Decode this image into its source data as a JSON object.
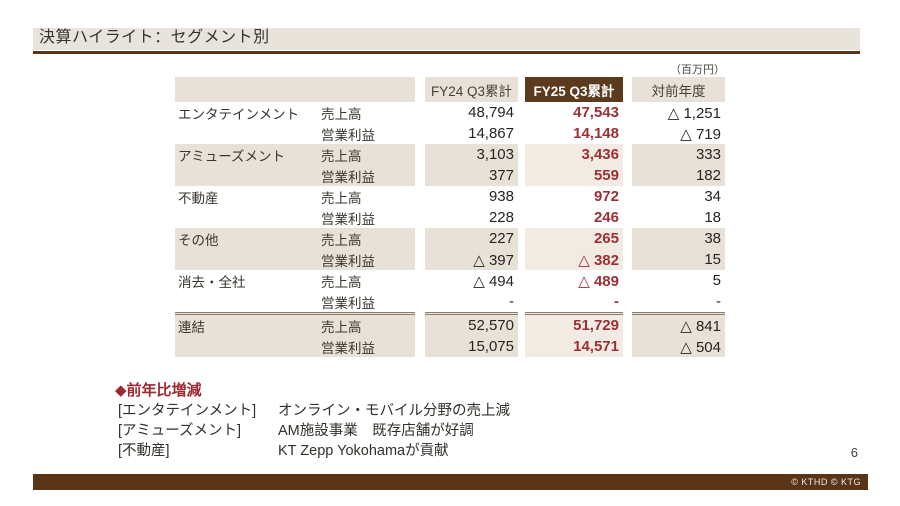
{
  "slide": {
    "title": "決算ハイライト：セグメント別",
    "unit_note": "（百万円）",
    "page_number": "6",
    "footer_copyright": "© KTHD © KTG"
  },
  "table": {
    "columns": {
      "fy24": "FY24 Q3累計",
      "fy25": "FY25 Q3累計",
      "yoy": "対前年度"
    },
    "rows": [
      {
        "segment": "エンタテインメント",
        "metric": "売上高",
        "fy24": "48,794",
        "fy25": "47,543",
        "yoy": "△ 1,251"
      },
      {
        "segment": "",
        "metric": "営業利益",
        "fy24": "14,867",
        "fy25": "14,148",
        "yoy": "△ 719"
      },
      {
        "segment": "アミューズメント",
        "metric": "売上高",
        "fy24": "3,103",
        "fy25": "3,436",
        "yoy": "333"
      },
      {
        "segment": "",
        "metric": "営業利益",
        "fy24": "377",
        "fy25": "559",
        "yoy": "182"
      },
      {
        "segment": "不動産",
        "metric": "売上高",
        "fy24": "938",
        "fy25": "972",
        "yoy": "34"
      },
      {
        "segment": "",
        "metric": "営業利益",
        "fy24": "228",
        "fy25": "246",
        "yoy": "18"
      },
      {
        "segment": "その他",
        "metric": "売上高",
        "fy24": "227",
        "fy25": "265",
        "yoy": "38"
      },
      {
        "segment": "",
        "metric": "営業利益",
        "fy24": "△ 397",
        "fy25": "△ 382",
        "yoy": "15"
      },
      {
        "segment": "消去・全社",
        "metric": "売上高",
        "fy24": "△ 494",
        "fy25": "△ 489",
        "yoy": "5"
      },
      {
        "segment": "",
        "metric": "営業利益",
        "fy24": "-",
        "fy25": "-",
        "yoy": "-"
      },
      {
        "segment": "連結",
        "metric": "売上高",
        "fy24": "52,570",
        "fy25": "51,729",
        "yoy": "△ 841"
      },
      {
        "segment": "",
        "metric": "営業利益",
        "fy24": "15,075",
        "fy25": "14,571",
        "yoy": "△ 504"
      }
    ]
  },
  "highlights": {
    "heading": "◆前年比増減",
    "items": [
      {
        "label": "[エンタテインメント]",
        "text": "オンライン・モバイル分野の売上減"
      },
      {
        "label": "[アミューズメント]",
        "text": "AM施設事業　既存店舗が好調"
      },
      {
        "label": "[不動産]",
        "text": "KT Zepp Yokohamaが貢献"
      }
    ]
  },
  "colors": {
    "accent_brown": "#5a3417",
    "header_cell_brown": "#5c3a1e",
    "band_beige": "#e8e1d8",
    "band_beige_light": "#f1ebe3",
    "highlight_red": "#9e2f34"
  }
}
